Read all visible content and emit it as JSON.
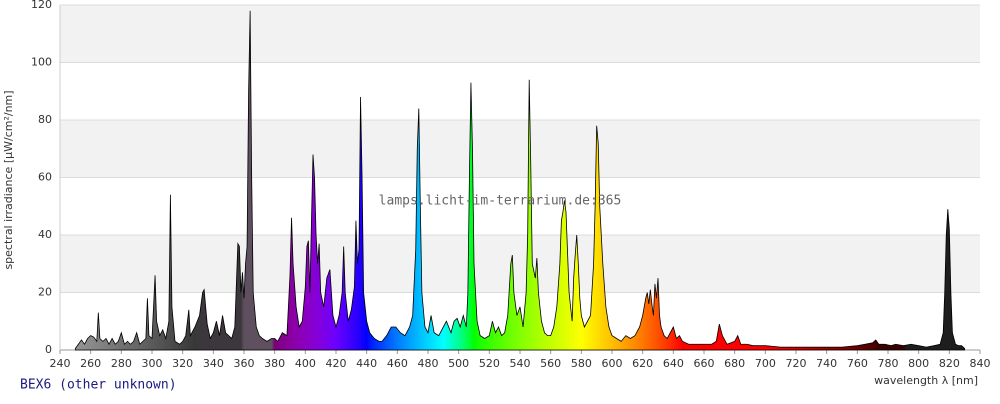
{
  "chart_data": {
    "type": "area",
    "ylabel": "spectral irradiance [µW/cm²/nm]",
    "xlabel": "wavelength λ [nm]",
    "annotation": "lamps.licht-im-terrarium.de:365",
    "xlim": [
      240,
      840
    ],
    "ylim": [
      0,
      120
    ],
    "xticks": [
      240,
      260,
      280,
      300,
      320,
      340,
      360,
      380,
      400,
      420,
      440,
      460,
      480,
      500,
      520,
      540,
      560,
      580,
      600,
      620,
      640,
      660,
      680,
      700,
      720,
      740,
      760,
      780,
      800,
      820,
      840
    ],
    "yticks": [
      0,
      20,
      40,
      60,
      80,
      100,
      120
    ],
    "grid": true,
    "legend": "bottom-left",
    "x": [
      250,
      252,
      254,
      256,
      258,
      260,
      262,
      264,
      265,
      266,
      268,
      270,
      272,
      274,
      276,
      278,
      280,
      282,
      284,
      286,
      288,
      290,
      292,
      294,
      296,
      297,
      298,
      300,
      302,
      303,
      305,
      307,
      309,
      311,
      312,
      313,
      315,
      318,
      320,
      322,
      324,
      325,
      328,
      331,
      333,
      334,
      336,
      338,
      340,
      342,
      344,
      346,
      348,
      350,
      352,
      354,
      356,
      357,
      358,
      359,
      360,
      361,
      362,
      363,
      364,
      365,
      366,
      368,
      370,
      372,
      375,
      378,
      380,
      382,
      385,
      388,
      390,
      391,
      392,
      394,
      396,
      398,
      400,
      401,
      402,
      403,
      404,
      405,
      406,
      407,
      408,
      409,
      410,
      412,
      414,
      416,
      418,
      420,
      422,
      424,
      425,
      426,
      428,
      430,
      432,
      433,
      434,
      435,
      436,
      437,
      438,
      440,
      442,
      445,
      448,
      450,
      453,
      456,
      459,
      462,
      465,
      468,
      470,
      472,
      473,
      474,
      475,
      476,
      478,
      480,
      482,
      484,
      487,
      490,
      492,
      495,
      497,
      499,
      501,
      503,
      505,
      506,
      507,
      508,
      509,
      510,
      512,
      514,
      517,
      520,
      522,
      524,
      526,
      528,
      530,
      532,
      534,
      535,
      536,
      538,
      540,
      542,
      544,
      545,
      546,
      547,
      548,
      550,
      551,
      552,
      554,
      556,
      558,
      560,
      562,
      564,
      566,
      567,
      568,
      569,
      570,
      572,
      574,
      575,
      576,
      577,
      578,
      579,
      580,
      582,
      584,
      586,
      588,
      589,
      590,
      591,
      592,
      594,
      596,
      598,
      600,
      603,
      606,
      609,
      612,
      615,
      618,
      620,
      622,
      623,
      624,
      625,
      626,
      627,
      628,
      629,
      630,
      631,
      632,
      634,
      636,
      638,
      640,
      642,
      644,
      646,
      650,
      655,
      660,
      665,
      668,
      670,
      672,
      675,
      680,
      682,
      684,
      688,
      692,
      700,
      710,
      720,
      730,
      740,
      750,
      760,
      765,
      770,
      772,
      774,
      778,
      782,
      785,
      790,
      795,
      800,
      805,
      810,
      814,
      816,
      817,
      818,
      819,
      820,
      821,
      822,
      824,
      826,
      828,
      830
    ],
    "series": [
      {
        "name": "BEX6 (other unknown)",
        "color": "#000000",
        "values": [
          0.5,
          2,
          3.5,
          2,
          4,
          5,
          4.5,
          3,
          13,
          4,
          3,
          4,
          2,
          4,
          2,
          3,
          6,
          2,
          3,
          2,
          3,
          6,
          2,
          3,
          4,
          18,
          5,
          4,
          26,
          10,
          5,
          7,
          4,
          10,
          54,
          15,
          3,
          2,
          3,
          5,
          14,
          5,
          8,
          12,
          20,
          21,
          9,
          4,
          6,
          10,
          5,
          12,
          6,
          5,
          4,
          8,
          37,
          36,
          20,
          27,
          18,
          30,
          36,
          90,
          118,
          60,
          20,
          8,
          5,
          4,
          3,
          4,
          4,
          3,
          6,
          5,
          26,
          46,
          30,
          15,
          8,
          10,
          22,
          36,
          38,
          20,
          45,
          68,
          60,
          40,
          30,
          37,
          20,
          15,
          25,
          28,
          12,
          8,
          12,
          20,
          36,
          20,
          10,
          14,
          22,
          45,
          30,
          35,
          88,
          60,
          20,
          10,
          6,
          4,
          3,
          3,
          5,
          8,
          8,
          6,
          5,
          8,
          12,
          35,
          70,
          84,
          50,
          20,
          8,
          6,
          12,
          6,
          5,
          8,
          10,
          6,
          10,
          11,
          8,
          12,
          8,
          20,
          60,
          93,
          70,
          30,
          10,
          5,
          4,
          5,
          10,
          6,
          8,
          5,
          6,
          12,
          30,
          33,
          20,
          12,
          15,
          8,
          20,
          40,
          94,
          65,
          30,
          25,
          32,
          20,
          10,
          6,
          5,
          5,
          8,
          15,
          30,
          45,
          48,
          52,
          48,
          20,
          10,
          25,
          33,
          40,
          30,
          18,
          12,
          8,
          10,
          12,
          30,
          50,
          78,
          72,
          50,
          30,
          15,
          8,
          5,
          4,
          3,
          5,
          4,
          5,
          8,
          12,
          18,
          20,
          16,
          21,
          16,
          12,
          23,
          18,
          25,
          12,
          8,
          5,
          4,
          6,
          8,
          4,
          5,
          3,
          2,
          2,
          2,
          2,
          3,
          9,
          5,
          2,
          3,
          5,
          2,
          2,
          1.5,
          1.5,
          1,
          1,
          1,
          1,
          1,
          1.5,
          2,
          2.5,
          3.5,
          2,
          2,
          1.5,
          2,
          1.5,
          2,
          1.5,
          1,
          1.5,
          2,
          6,
          20,
          40,
          49,
          42,
          20,
          6,
          2,
          1.5,
          1.5,
          0.5
        ]
      }
    ]
  }
}
